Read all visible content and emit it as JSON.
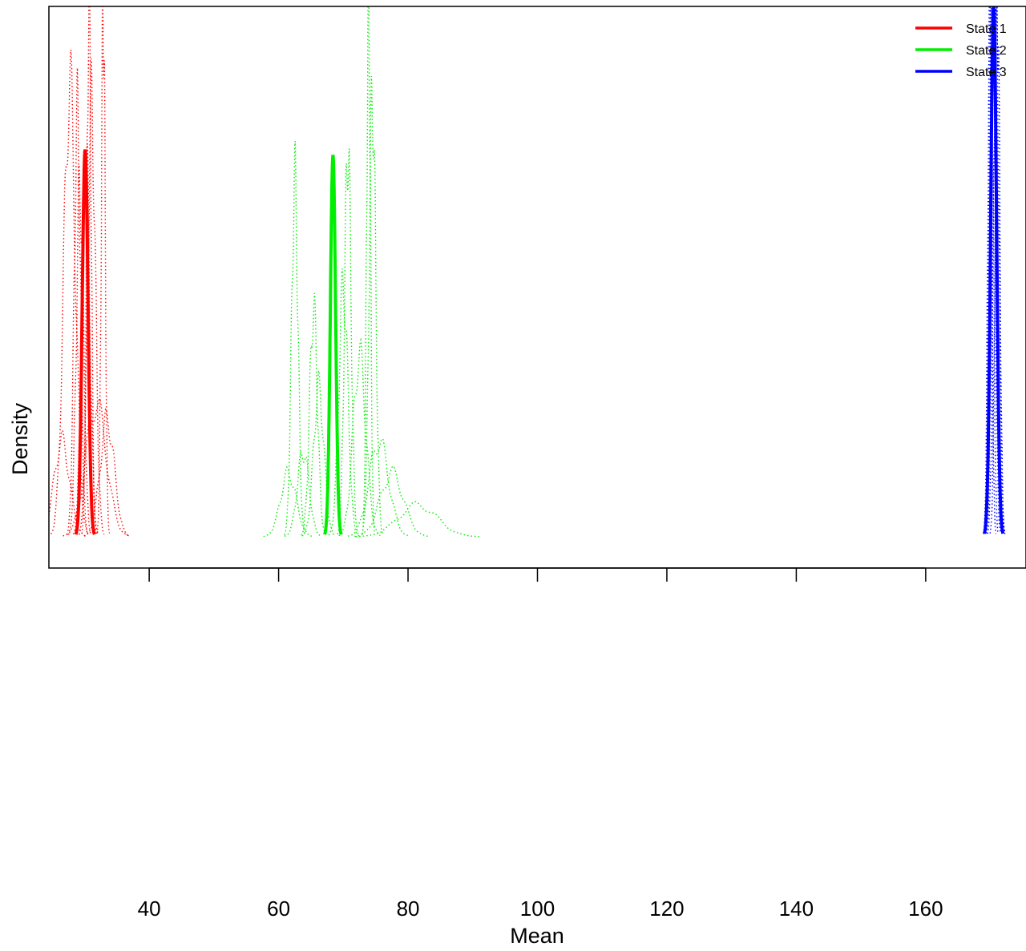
{
  "chart_data": {
    "type": "line",
    "title": "",
    "xlabel": "Mean",
    "ylabel": "Density",
    "xlim": [
      24.5,
      175.5
    ],
    "ylim": [
      0,
      1
    ],
    "xticks": [
      40,
      60,
      80,
      100,
      120,
      140,
      160
    ],
    "xtick_labels": [
      "40",
      "60",
      "80",
      "100",
      "120",
      "140",
      "160"
    ],
    "yticks_shown": false,
    "legend": {
      "placement": "top-right",
      "entries": [
        "State 1",
        "State 2",
        "State 3"
      ]
    },
    "colors": {
      "State 1": "#ff0000",
      "State 2": "#00ee00",
      "State 3": "#0000ff"
    },
    "series": [
      {
        "name": "State 1",
        "color": "#ff0000",
        "main": {
          "peak_x": 30.1,
          "peak_y": 0.73,
          "sd": 0.45
        },
        "draws": [
          {
            "x": 27.7,
            "y": 0.85,
            "sd": 0.9
          },
          {
            "x": 28.9,
            "y": 0.79,
            "sd": 0.5
          },
          {
            "x": 29.3,
            "y": 0.66,
            "sd": 0.55
          },
          {
            "x": 30.2,
            "y": 0.74,
            "sd": 0.6
          },
          {
            "x": 30.7,
            "y": 1.0,
            "sd": 0.35
          },
          {
            "x": 31.1,
            "y": 0.81,
            "sd": 0.6
          },
          {
            "x": 32.9,
            "y": 1.0,
            "sd": 0.3
          },
          {
            "x": 31.8,
            "y": 0.25,
            "sd": 1.6
          },
          {
            "x": 26.5,
            "y": 0.18,
            "sd": 1.2
          },
          {
            "x": 33.5,
            "y": 0.22,
            "sd": 1.1
          }
        ]
      },
      {
        "name": "State 2",
        "color": "#00ee00",
        "main": {
          "peak_x": 68.4,
          "peak_y": 0.72,
          "sd": 0.4
        },
        "draws": [
          {
            "x": 62.5,
            "y": 0.67,
            "sd": 0.5
          },
          {
            "x": 61.5,
            "y": 0.12,
            "sd": 1.2
          },
          {
            "x": 63.8,
            "y": 0.16,
            "sd": 0.9
          },
          {
            "x": 65.4,
            "y": 0.43,
            "sd": 0.6
          },
          {
            "x": 66.2,
            "y": 0.28,
            "sd": 0.8
          },
          {
            "x": 70.0,
            "y": 0.47,
            "sd": 0.7
          },
          {
            "x": 70.7,
            "y": 0.74,
            "sd": 0.5
          },
          {
            "x": 72.5,
            "y": 0.34,
            "sd": 1.0
          },
          {
            "x": 73.9,
            "y": 1.0,
            "sd": 0.3
          },
          {
            "x": 74.5,
            "y": 0.83,
            "sd": 0.5
          },
          {
            "x": 75.5,
            "y": 0.18,
            "sd": 1.5
          },
          {
            "x": 77.5,
            "y": 0.12,
            "sd": 1.8
          },
          {
            "x": 81.5,
            "y": 0.06,
            "sd": 3.0
          }
        ]
      },
      {
        "name": "State 3",
        "color": "#0000ff",
        "main": {
          "peak_x": 170.5,
          "peak_y": 1.0,
          "sd": 0.45
        },
        "draws": [
          {
            "x": 170.1,
            "y": 1.0,
            "sd": 0.35
          },
          {
            "x": 170.3,
            "y": 1.0,
            "sd": 0.4
          },
          {
            "x": 170.6,
            "y": 1.0,
            "sd": 0.38
          },
          {
            "x": 170.9,
            "y": 1.0,
            "sd": 0.42
          },
          {
            "x": 169.9,
            "y": 1.0,
            "sd": 0.3
          },
          {
            "x": 171.1,
            "y": 1.0,
            "sd": 0.36
          }
        ]
      }
    ]
  }
}
